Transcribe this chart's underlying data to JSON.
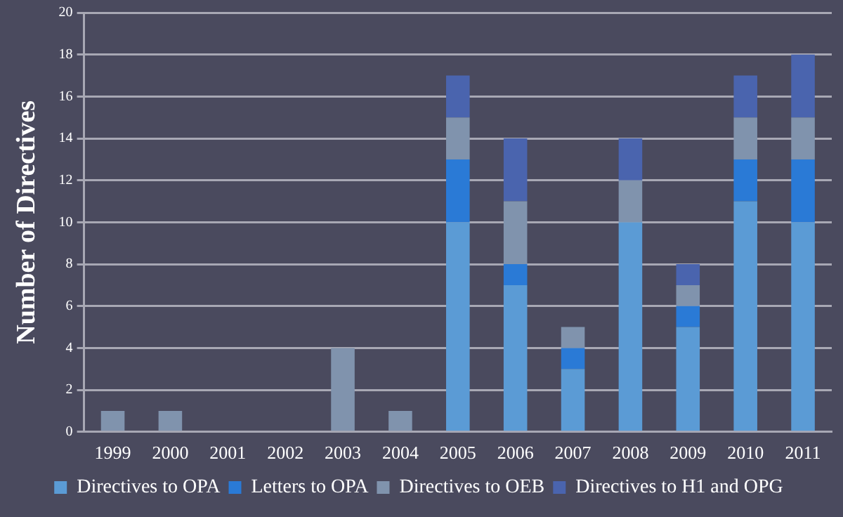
{
  "chart_data": {
    "type": "bar",
    "stacked": true,
    "ylabel": "Number of Directives",
    "categories": [
      "1999",
      "2000",
      "2001",
      "2002",
      "2003",
      "2004",
      "2005",
      "2006",
      "2007",
      "2008",
      "2009",
      "2010",
      "2011"
    ],
    "series": [
      {
        "name": "Directives to OPA",
        "color": "#5b9bd5",
        "values": [
          null,
          null,
          null,
          null,
          null,
          null,
          10,
          7,
          3,
          10,
          5,
          11,
          10
        ]
      },
      {
        "name": "Letters to OPA",
        "color": "#2a7ad6",
        "values": [
          null,
          null,
          null,
          null,
          null,
          null,
          3,
          1,
          1,
          null,
          1,
          2,
          3
        ]
      },
      {
        "name": "Directives to OEB",
        "color": "#8093ad",
        "values": [
          1,
          1,
          null,
          null,
          4,
          1,
          2,
          3,
          1,
          2,
          1,
          2,
          2
        ]
      },
      {
        "name": "Directives to H1 and OPG",
        "color": "#4a64ae",
        "values": [
          null,
          null,
          null,
          null,
          null,
          null,
          2,
          3,
          null,
          2,
          1,
          2,
          3
        ]
      }
    ],
    "ylim": [
      0,
      20
    ],
    "yticks": [
      0,
      2,
      4,
      6,
      8,
      10,
      12,
      14,
      16,
      18,
      20
    ],
    "grid": "y",
    "legend": "bottom"
  }
}
